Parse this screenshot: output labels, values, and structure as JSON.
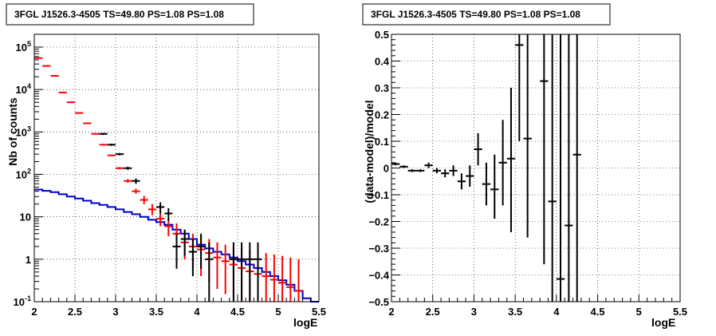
{
  "chart_data": [
    {
      "type": "scatter",
      "title": "3FGL J1526.3-4505 TS=49.80 PS=1.08 PS=1.08",
      "xlabel": "logE",
      "ylabel": "Nb of counts",
      "xlim": [
        2,
        5.5
      ],
      "ylim": [
        0.1,
        200000
      ],
      "yscale": "log",
      "grid": true,
      "x_ticks": [
        "2",
        "2.5",
        "3",
        "3.5",
        "4",
        "4.5",
        "5",
        "5.5"
      ],
      "y_ticks": [
        {
          "value": 0.1,
          "label": "10",
          "exp": "-1"
        },
        {
          "value": 1,
          "label": "1",
          "exp": ""
        },
        {
          "value": 10,
          "label": "10",
          "exp": ""
        },
        {
          "value": 100,
          "label": "10",
          "exp": "2"
        },
        {
          "value": 1000,
          "label": "10",
          "exp": "3"
        },
        {
          "value": 10000,
          "label": "10",
          "exp": "4"
        },
        {
          "value": 100000,
          "label": "10",
          "exp": "5"
        }
      ],
      "series": [
        {
          "color": "#ff0000",
          "style": "errorbars",
          "x": [
            2.05,
            2.15,
            2.25,
            2.35,
            2.45,
            2.55,
            2.65,
            2.75,
            2.85,
            2.95,
            3.05,
            3.15,
            3.25,
            3.35,
            3.45,
            3.55,
            3.65,
            3.75,
            3.85,
            3.95,
            4.05,
            4.15,
            4.25,
            4.35,
            4.45,
            4.55,
            4.65,
            4.75,
            4.85,
            4.95,
            5.05,
            5.15,
            5.25
          ],
          "y": [
            55000,
            36000,
            21000,
            8500,
            5000,
            2800,
            1600,
            900,
            500,
            280,
            140,
            70,
            40,
            25,
            15,
            9,
            6,
            4,
            2.5,
            2,
            1.7,
            1.4,
            1.1,
            0.9,
            0.75,
            0.62,
            0.52,
            0.45,
            0.4,
            0.33,
            0.28,
            0.22,
            0.18
          ],
          "ylo": [
            54000,
            35000,
            20500,
            8300,
            4900,
            2700,
            1550,
            870,
            480,
            270,
            132,
            64,
            35,
            20,
            11,
            6,
            3.5,
            2,
            1.0,
            0.6,
            0.4,
            0.3,
            0.2,
            0.15,
            0.12,
            0.1,
            0.1,
            0.1,
            0.1,
            0.1,
            0.1,
            0.1,
            0.1
          ],
          "yhi": [
            56000,
            37000,
            21500,
            8700,
            5100,
            2900,
            1650,
            930,
            520,
            290,
            148,
            77,
            46,
            31,
            20,
            13,
            9,
            7,
            5,
            4,
            3.5,
            3,
            2.5,
            2.2,
            2,
            1.8,
            1.6,
            1.5,
            1.4,
            1.3,
            1.2,
            1.1,
            1.0
          ]
        },
        {
          "color": "#000000",
          "style": "errorbars",
          "x": [
            2.85,
            2.95,
            3.05,
            3.15,
            3.25,
            3.55,
            3.65,
            3.75,
            3.85,
            3.95,
            4.05,
            4.15,
            4.45,
            4.55,
            4.65,
            4.75
          ],
          "y": [
            900,
            500,
            300,
            140,
            70,
            17,
            12,
            2,
            3,
            1.5,
            2,
            1,
            1,
            1,
            1,
            1
          ],
          "ylo": [
            850,
            470,
            280,
            128,
            60,
            12,
            8,
            0.6,
            1.2,
            0.4,
            0.6,
            0.1,
            0.1,
            0.1,
            0.1,
            0.1
          ],
          "yhi": [
            950,
            530,
            320,
            152,
            80,
            22,
            16,
            4,
            5,
            3,
            4,
            2.5,
            2.5,
            2.5,
            2.5,
            2.5
          ]
        },
        {
          "color": "#0000cc",
          "style": "step",
          "edges": [
            2.0,
            2.1,
            2.2,
            2.3,
            2.4,
            2.5,
            2.6,
            2.7,
            2.8,
            2.9,
            3.0,
            3.1,
            3.2,
            3.3,
            3.4,
            3.5,
            3.6,
            3.7,
            3.8,
            3.9,
            4.0,
            4.1,
            4.2,
            4.3,
            4.4,
            4.5,
            4.6,
            4.7,
            4.8,
            4.9,
            5.0,
            5.1,
            5.2,
            5.3,
            5.4,
            5.5
          ],
          "values": [
            44,
            41,
            38,
            34,
            30,
            27,
            24,
            21,
            19,
            17,
            15,
            13,
            11.5,
            10,
            8.5,
            7.5,
            6.5,
            5,
            4,
            3,
            2.2,
            1.8,
            1.5,
            1.3,
            1.1,
            0.9,
            0.75,
            0.62,
            0.5,
            0.4,
            0.32,
            0.25,
            0.18,
            0.12,
            0.1
          ]
        }
      ]
    },
    {
      "type": "scatter",
      "title": "3FGL J1526.3-4505 TS=49.80 PS=1.08 PS=1.08",
      "xlabel": "logE",
      "ylabel": "(data-model)/model",
      "xlim": [
        2,
        5.5
      ],
      "ylim": [
        -0.5,
        0.5
      ],
      "grid": true,
      "x_ticks": [
        "2",
        "2.5",
        "3",
        "3.5",
        "4",
        "4.5",
        "5",
        "5.5"
      ],
      "y_ticks": [
        "−0.5",
        "−0.4",
        "−0.3",
        "−0.2",
        "−0.1",
        "0",
        "0.1",
        "0.2",
        "0.3",
        "0.4",
        "0.5"
      ],
      "y_tick_values": [
        -0.5,
        -0.4,
        -0.3,
        -0.2,
        -0.1,
        0,
        0.1,
        0.2,
        0.3,
        0.4,
        0.5
      ],
      "series": [
        {
          "color": "#000000",
          "style": "errorbars",
          "x": [
            2.05,
            2.15,
            2.25,
            2.35,
            2.45,
            2.55,
            2.65,
            2.75,
            2.85,
            2.95,
            3.05,
            3.15,
            3.25,
            3.35,
            3.45,
            3.55,
            3.65,
            3.85,
            3.95,
            4.05,
            4.15,
            4.25
          ],
          "y": [
            0.015,
            0.005,
            -0.01,
            -0.01,
            0.01,
            -0.01,
            -0.02,
            -0.01,
            -0.05,
            -0.03,
            0.07,
            -0.06,
            -0.08,
            0.02,
            0.035,
            0.46,
            0.11,
            0.325,
            -0.125,
            -0.415,
            -0.215,
            0.05
          ],
          "ylo": [
            0.01,
            0.0,
            -0.015,
            -0.015,
            0.0,
            -0.02,
            -0.035,
            -0.03,
            -0.08,
            -0.07,
            0.01,
            -0.14,
            -0.19,
            -0.14,
            -0.24,
            0.1,
            -0.26,
            -0.36,
            -0.5,
            -0.5,
            -0.5,
            -0.5
          ],
          "yhi": [
            0.02,
            0.01,
            -0.005,
            -0.005,
            0.02,
            0.0,
            -0.005,
            0.01,
            -0.02,
            0.01,
            0.13,
            0.02,
            0.05,
            0.18,
            0.3,
            0.5,
            0.5,
            0.5,
            0.5,
            0.5,
            0.5,
            0.5
          ]
        }
      ]
    }
  ]
}
